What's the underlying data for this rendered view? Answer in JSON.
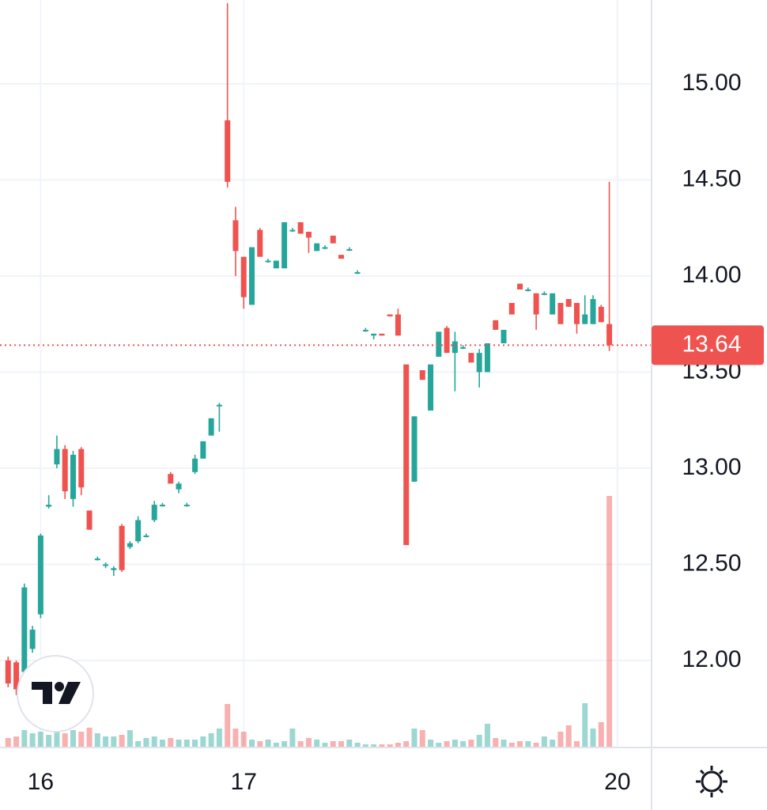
{
  "chart_data": {
    "type": "candlestick",
    "x": [
      0,
      1,
      2,
      3,
      4,
      5,
      6,
      7,
      8,
      9,
      10,
      11,
      12,
      13,
      14,
      15,
      16,
      17,
      18,
      19,
      20,
      21,
      22,
      23,
      24,
      25,
      26,
      27,
      28,
      29,
      30,
      31,
      32,
      33,
      34,
      35,
      36,
      37,
      38,
      39,
      40,
      41,
      42,
      43,
      44,
      45,
      46,
      47,
      48,
      49,
      50,
      51,
      52,
      53,
      54,
      55,
      56,
      57,
      58,
      59,
      60,
      61,
      62,
      63,
      64,
      65,
      66,
      67,
      68,
      69,
      70,
      71,
      72,
      73,
      74
    ],
    "open": [
      12.0,
      11.99,
      11.94,
      12.06,
      12.24,
      12.8,
      13.02,
      13.1,
      12.84,
      13.1,
      12.78,
      12.53,
      12.5,
      12.47,
      12.7,
      12.59,
      12.62,
      12.65,
      12.73,
      12.81,
      12.97,
      12.89,
      12.81,
      12.98,
      13.05,
      13.17,
      13.33,
      14.81,
      14.29,
      14.1,
      13.85,
      14.24,
      14.08,
      14.04,
      14.04,
      14.24,
      14.28,
      14.23,
      14.13,
      14.15,
      14.21,
      14.11,
      14.14,
      14.02,
      13.72,
      13.69,
      13.7,
      13.8,
      13.8,
      13.54,
      12.93,
      13.51,
      13.3,
      13.58,
      13.73,
      13.6,
      13.63,
      13.6,
      13.5,
      13.5,
      13.77,
      13.65,
      13.86,
      13.96,
      13.93,
      13.91,
      13.91,
      13.8,
      13.86,
      13.88,
      13.86,
      13.75,
      13.75,
      13.84,
      13.75
    ],
    "high": [
      12.02,
      12.0,
      12.4,
      12.18,
      12.66,
      12.86,
      13.17,
      13.12,
      13.09,
      13.11,
      12.78,
      12.54,
      12.51,
      12.49,
      12.71,
      12.62,
      12.75,
      12.66,
      12.83,
      12.82,
      12.98,
      12.93,
      12.82,
      13.07,
      13.14,
      13.26,
      13.34,
      15.42,
      14.36,
      14.1,
      14.15,
      14.25,
      14.09,
      14.08,
      14.28,
      14.25,
      14.28,
      14.23,
      14.17,
      14.16,
      14.21,
      14.11,
      14.15,
      14.03,
      13.73,
      13.7,
      13.7,
      13.8,
      13.83,
      13.54,
      13.27,
      13.51,
      13.54,
      13.71,
      13.74,
      13.71,
      13.64,
      13.6,
      13.62,
      13.65,
      13.77,
      13.72,
      13.86,
      13.96,
      13.94,
      13.91,
      13.92,
      13.91,
      13.86,
      13.88,
      13.86,
      13.9,
      13.9,
      13.85,
      14.49
    ],
    "low": [
      11.86,
      11.82,
      11.92,
      12.04,
      12.22,
      12.79,
      13.0,
      12.84,
      12.8,
      12.86,
      12.68,
      12.52,
      12.48,
      12.44,
      12.46,
      12.58,
      12.61,
      12.64,
      12.72,
      12.8,
      12.92,
      12.87,
      12.8,
      12.97,
      13.05,
      13.17,
      13.19,
      14.46,
      14.0,
      13.83,
      13.85,
      14.1,
      14.07,
      14.04,
      14.04,
      14.23,
      14.22,
      14.12,
      14.13,
      14.14,
      14.17,
      14.09,
      14.13,
      14.01,
      13.71,
      13.67,
      13.69,
      13.79,
      13.69,
      12.6,
      12.93,
      13.46,
      13.3,
      13.58,
      13.6,
      13.4,
      13.62,
      13.55,
      13.42,
      13.5,
      13.72,
      13.65,
      13.8,
      13.93,
      13.92,
      13.72,
      13.9,
      13.8,
      13.75,
      13.84,
      13.7,
      13.75,
      13.75,
      13.76,
      13.61
    ],
    "close": [
      11.88,
      11.85,
      12.38,
      12.16,
      12.65,
      12.81,
      13.1,
      12.88,
      13.07,
      12.9,
      12.68,
      12.53,
      12.5,
      12.48,
      12.47,
      12.61,
      12.73,
      12.65,
      12.81,
      12.81,
      12.92,
      12.92,
      12.81,
      13.05,
      13.14,
      13.26,
      13.33,
      14.49,
      14.13,
      13.89,
      14.15,
      14.1,
      14.08,
      14.08,
      14.28,
      14.24,
      14.22,
      14.2,
      14.17,
      14.15,
      14.17,
      14.09,
      14.14,
      14.02,
      13.72,
      13.7,
      13.69,
      13.79,
      13.69,
      12.6,
      13.27,
      13.46,
      13.54,
      13.71,
      13.6,
      13.66,
      13.63,
      13.55,
      13.6,
      13.65,
      13.72,
      13.72,
      13.8,
      13.93,
      13.93,
      13.8,
      13.91,
      13.91,
      13.75,
      13.84,
      13.75,
      13.8,
      13.88,
      13.76,
      13.64
    ],
    "volume": [
      12,
      14,
      22,
      18,
      20,
      16,
      20,
      18,
      22,
      20,
      25,
      18,
      14,
      14,
      16,
      22,
      8,
      12,
      14,
      10,
      12,
      10,
      10,
      10,
      14,
      18,
      24,
      55,
      24,
      20,
      10,
      8,
      10,
      6,
      8,
      24,
      8,
      12,
      10,
      6,
      8,
      8,
      10,
      6,
      4,
      4,
      4,
      4,
      6,
      8,
      24,
      22,
      10,
      6,
      8,
      10,
      8,
      10,
      16,
      30,
      12,
      10,
      6,
      8,
      8,
      6,
      14,
      10,
      20,
      28,
      8,
      56,
      24,
      32,
      318
    ],
    "up_color": "#26a69a",
    "down_color": "#ef5350",
    "xlim": [
      -1,
      79.2
    ],
    "xticks": [
      {
        "value": 4,
        "label": "16"
      },
      {
        "value": 29,
        "label": "17"
      },
      {
        "value": 75,
        "label": "20"
      }
    ],
    "ylim": [
      11.547,
      15.436
    ],
    "yticks": [
      {
        "value": 12,
        "label": "12.00"
      },
      {
        "value": 12.5,
        "label": "12.50"
      },
      {
        "value": 13,
        "label": "13.00"
      },
      {
        "value": 13.5,
        "label": "13.50"
      },
      {
        "value": 14,
        "label": "14.00"
      },
      {
        "value": 14.5,
        "label": "14.50"
      },
      {
        "value": 15,
        "label": "15.00"
      }
    ],
    "vlim": [
      0,
      945
    ],
    "last_price": 13.64,
    "grid": true
  }
}
